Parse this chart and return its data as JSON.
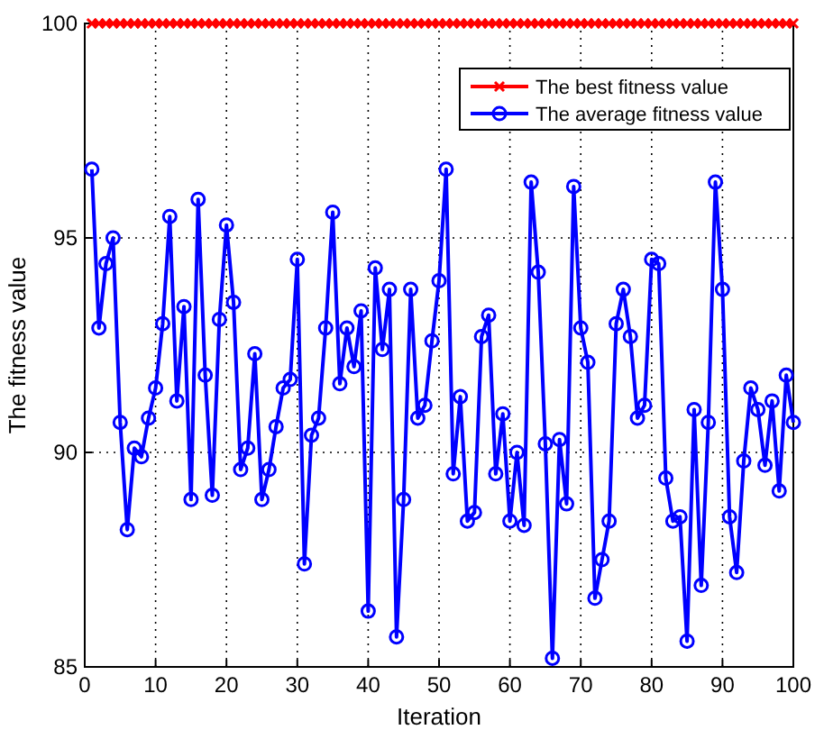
{
  "chart_data": {
    "type": "line",
    "xlabel": "Iteration",
    "ylabel": "The fitness value",
    "x": [
      1,
      2,
      3,
      4,
      5,
      6,
      7,
      8,
      9,
      10,
      11,
      12,
      13,
      14,
      15,
      16,
      17,
      18,
      19,
      20,
      21,
      22,
      23,
      24,
      25,
      26,
      27,
      28,
      29,
      30,
      31,
      32,
      33,
      34,
      35,
      36,
      37,
      38,
      39,
      40,
      41,
      42,
      43,
      44,
      45,
      46,
      47,
      48,
      49,
      50,
      51,
      52,
      53,
      54,
      55,
      56,
      57,
      58,
      59,
      60,
      61,
      62,
      63,
      64,
      65,
      66,
      67,
      68,
      69,
      70,
      71,
      72,
      73,
      74,
      75,
      76,
      77,
      78,
      79,
      80,
      81,
      82,
      83,
      84,
      85,
      86,
      87,
      88,
      89,
      90,
      91,
      92,
      93,
      94,
      95,
      96,
      97,
      98,
      99,
      100
    ],
    "series": [
      {
        "name": "The best fitness value",
        "color": "#ff0000",
        "marker": "cross",
        "values": [
          100,
          100,
          100,
          100,
          100,
          100,
          100,
          100,
          100,
          100,
          100,
          100,
          100,
          100,
          100,
          100,
          100,
          100,
          100,
          100,
          100,
          100,
          100,
          100,
          100,
          100,
          100,
          100,
          100,
          100,
          100,
          100,
          100,
          100,
          100,
          100,
          100,
          100,
          100,
          100,
          100,
          100,
          100,
          100,
          100,
          100,
          100,
          100,
          100,
          100,
          100,
          100,
          100,
          100,
          100,
          100,
          100,
          100,
          100,
          100,
          100,
          100,
          100,
          100,
          100,
          100,
          100,
          100,
          100,
          100,
          100,
          100,
          100,
          100,
          100,
          100,
          100,
          100,
          100,
          100,
          100,
          100,
          100,
          100,
          100,
          100,
          100,
          100,
          100,
          100,
          100,
          100,
          100,
          100,
          100,
          100,
          100,
          100,
          100,
          100
        ]
      },
      {
        "name": "The average fitness value",
        "color": "#0000ff",
        "marker": "circle",
        "values": [
          96.6,
          92.9,
          94.4,
          95.0,
          90.7,
          88.2,
          90.1,
          89.9,
          90.8,
          91.5,
          93.0,
          95.5,
          91.2,
          93.4,
          88.9,
          95.9,
          91.8,
          89.0,
          93.1,
          95.3,
          93.5,
          89.6,
          90.1,
          92.3,
          88.9,
          89.6,
          90.6,
          91.5,
          91.7,
          94.5,
          87.4,
          90.4,
          90.8,
          92.9,
          95.6,
          91.6,
          92.9,
          92.0,
          93.3,
          86.3,
          94.3,
          92.4,
          93.8,
          85.7,
          88.9,
          93.8,
          90.8,
          91.1,
          92.6,
          94.0,
          96.6,
          89.5,
          91.3,
          88.4,
          88.6,
          92.7,
          93.2,
          89.5,
          90.9,
          88.4,
          90.0,
          88.3,
          96.3,
          94.2,
          90.2,
          85.2,
          90.3,
          88.8,
          96.2,
          92.9,
          92.1,
          86.6,
          87.5,
          88.4,
          93.0,
          93.8,
          92.7,
          90.8,
          91.1,
          94.5,
          94.4,
          89.4,
          88.4,
          88.5,
          85.6,
          91.0,
          86.9,
          90.7,
          96.3,
          93.8,
          88.5,
          87.2,
          89.8,
          91.5,
          91.0,
          89.7,
          91.2,
          89.1,
          91.8,
          90.7
        ]
      }
    ],
    "xlim": [
      0,
      100
    ],
    "xticks": [
      0,
      10,
      20,
      30,
      40,
      50,
      60,
      70,
      80,
      90,
      100
    ],
    "ylim": [
      85,
      100
    ],
    "yticks": [
      85,
      90,
      95,
      100
    ],
    "grid": true,
    "legend": "top right",
    "line_style": "solid"
  }
}
